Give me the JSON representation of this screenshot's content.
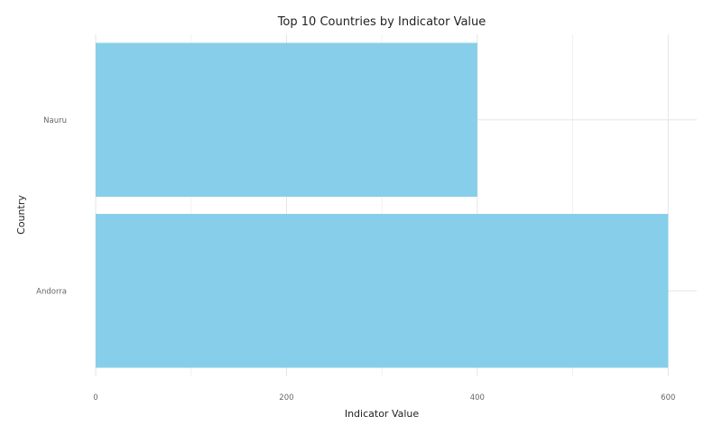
{
  "chart_data": {
    "type": "bar",
    "orientation": "horizontal",
    "title": "Top 10 Countries by Indicator Value",
    "xlabel": "Indicator Value",
    "ylabel": "Country",
    "categories": [
      "Andorra",
      "Nauru"
    ],
    "values": [
      600,
      400
    ],
    "xlim": [
      0,
      630
    ],
    "x_ticks": [
      0,
      200,
      400,
      600
    ],
    "grid": true,
    "bar_color": "#87ceeb"
  }
}
